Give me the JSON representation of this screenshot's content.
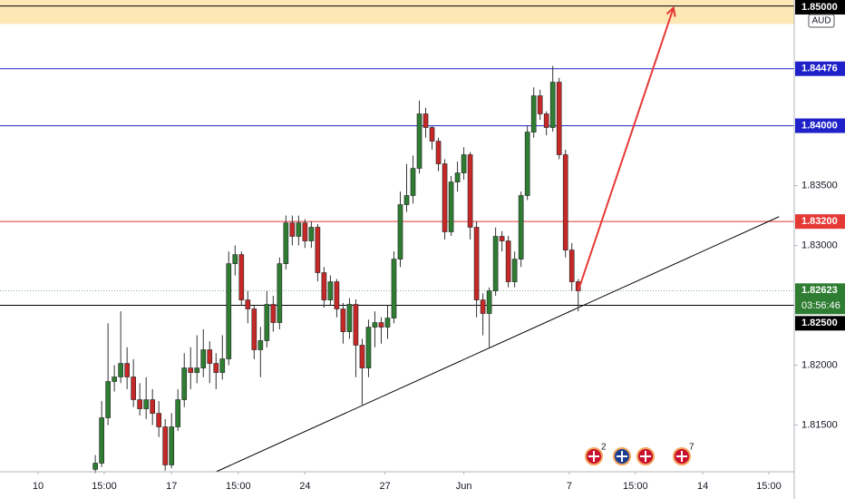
{
  "chart_data": {
    "type": "candlestick",
    "currency": "AUD",
    "countdown": "03:56:46",
    "xlim": [
      -15,
      110
    ],
    "ylim": [
      1.8111,
      1.8505
    ],
    "xticks": [
      {
        "value": -9,
        "label": "10"
      },
      {
        "value": 1.4,
        "label": "15:00"
      },
      {
        "value": 12,
        "label": "17"
      },
      {
        "value": 22.5,
        "label": "15:00"
      },
      {
        "value": 33,
        "label": "24"
      },
      {
        "value": 45.6,
        "label": "27"
      },
      {
        "value": 58,
        "label": "Jun"
      },
      {
        "value": 74.6,
        "label": "7"
      },
      {
        "value": 85,
        "label": "15:00"
      },
      {
        "value": 95.6,
        "label": "14"
      },
      {
        "value": 106,
        "label": "15:00"
      }
    ],
    "yticks": [
      {
        "value": 1.815,
        "label": "1.81500"
      },
      {
        "value": 1.82,
        "label": "1.82000"
      },
      {
        "value": 1.83,
        "label": "1.83000"
      },
      {
        "value": 1.835,
        "label": "1.83500"
      }
    ],
    "up_color": "#2e7d32",
    "down_color": "#c62828",
    "open": [
      1.8113,
      1.81182,
      1.81561,
      1.81864,
      1.81902,
      1.82015,
      1.81902,
      1.81712,
      1.81636,
      1.81712,
      1.81598,
      1.81485,
      1.81167,
      1.81485,
      1.81712,
      1.81977,
      1.81939,
      1.81977,
      1.82129,
      1.82015,
      1.81939,
      1.82053,
      1.82848,
      1.82924,
      1.82545,
      1.8247,
      1.82129,
      1.82205,
      1.82508,
      1.82356,
      1.82848,
      1.83189,
      1.83076,
      1.83189,
      1.83038,
      1.83152,
      1.82773,
      1.82545,
      1.82697,
      1.8247,
      1.8228,
      1.82508,
      1.82167,
      1.81977,
      1.82318,
      1.82356,
      1.82318,
      1.82394,
      1.82886,
      1.83341,
      1.83417,
      1.83644,
      1.84099,
      1.83985,
      1.83871,
      1.83682,
      1.83114,
      1.8353,
      1.83606,
      1.83758,
      1.83152,
      1.82545,
      1.82432,
      1.82621,
      1.83076,
      1.83038,
      1.82697,
      1.82886,
      1.83417,
      1.83947,
      1.8425,
      1.84099,
      1.83985,
      1.84364,
      1.83758,
      1.82962,
      1.82697
    ],
    "high": [
      1.8125,
      1.817,
      1.8235,
      1.82,
      1.8245,
      1.8215,
      1.8205,
      1.8185,
      1.819,
      1.818,
      1.817,
      1.8155,
      1.816,
      1.818,
      1.821,
      1.8215,
      1.8225,
      1.823,
      1.822,
      1.821,
      1.8225,
      1.8295,
      1.83,
      1.8295,
      1.8262,
      1.825,
      1.8232,
      1.8262,
      1.8258,
      1.829,
      1.8325,
      1.8325,
      1.8325,
      1.8322,
      1.832,
      1.8318,
      1.8282,
      1.8275,
      1.8272,
      1.8252,
      1.8256,
      1.8255,
      1.8222,
      1.8238,
      1.8245,
      1.824,
      1.825,
      1.8295,
      1.8345,
      1.8368,
      1.8375,
      1.8421,
      1.8415,
      1.84,
      1.839,
      1.8372,
      1.8358,
      1.837,
      1.8382,
      1.8378,
      1.832,
      1.826,
      1.8265,
      1.8315,
      1.8312,
      1.8308,
      1.8295,
      1.8345,
      1.84,
      1.8432,
      1.843,
      1.8412,
      1.845,
      1.844,
      1.838,
      1.8302,
      1.8272
    ],
    "low": [
      1.811,
      1.8115,
      1.815,
      1.8178,
      1.8185,
      1.818,
      1.8165,
      1.8158,
      1.8155,
      1.815,
      1.814,
      1.8112,
      1.8114,
      1.8145,
      1.8165,
      1.818,
      1.8185,
      1.819,
      1.8185,
      1.818,
      1.8188,
      1.82,
      1.8275,
      1.825,
      1.8235,
      1.8205,
      1.819,
      1.8215,
      1.8228,
      1.823,
      1.828,
      1.83,
      1.83,
      1.8298,
      1.8298,
      1.827,
      1.8248,
      1.825,
      1.824,
      1.8218,
      1.8222,
      1.819,
      1.8167,
      1.819,
      1.8215,
      1.8218,
      1.8222,
      1.8235,
      1.8282,
      1.8328,
      1.8335,
      1.836,
      1.839,
      1.838,
      1.8362,
      1.8305,
      1.8308,
      1.8345,
      1.8355,
      1.8305,
      1.824,
      1.8225,
      1.8215,
      1.8258,
      1.8295,
      1.8265,
      1.8265,
      1.8282,
      1.8338,
      1.839,
      1.8405,
      1.8392,
      1.8395,
      1.8372,
      1.829,
      1.8262,
      1.8245
    ],
    "close": [
      1.81182,
      1.81561,
      1.81864,
      1.81902,
      1.82015,
      1.81902,
      1.81712,
      1.81636,
      1.81712,
      1.81598,
      1.81485,
      1.81167,
      1.81485,
      1.81712,
      1.81977,
      1.81939,
      1.81977,
      1.82129,
      1.82015,
      1.81939,
      1.82053,
      1.82848,
      1.82924,
      1.82545,
      1.8247,
      1.82129,
      1.82205,
      1.82508,
      1.82356,
      1.82848,
      1.83189,
      1.83076,
      1.83189,
      1.83038,
      1.83152,
      1.82773,
      1.82545,
      1.82697,
      1.8247,
      1.8228,
      1.82508,
      1.82167,
      1.81977,
      1.82318,
      1.82356,
      1.82318,
      1.82394,
      1.82886,
      1.83341,
      1.83417,
      1.83644,
      1.84099,
      1.83985,
      1.83871,
      1.83682,
      1.83114,
      1.8353,
      1.83606,
      1.83758,
      1.83152,
      1.82545,
      1.82432,
      1.82621,
      1.83076,
      1.83038,
      1.82697,
      1.82886,
      1.83417,
      1.83947,
      1.8425,
      1.84099,
      1.83985,
      1.84364,
      1.83758,
      1.82962,
      1.82697,
      1.82621
    ],
    "zone": {
      "values": [
        1.8485,
        1.8505
      ],
      "color": "#fde7b5"
    },
    "levels": [
      {
        "value": 1.85,
        "label": "1.85000",
        "color": "#000000"
      },
      {
        "value": 1.84476,
        "label": "1.84476",
        "color": "#1e22c8"
      },
      {
        "value": 1.84,
        "label": "1.84000",
        "color": "#1e22c8"
      },
      {
        "value": 1.832,
        "label": "1.83200",
        "color": "#e53935"
      },
      {
        "value": 1.82623,
        "label": "1.82623",
        "color": "#2e7d32"
      },
      {
        "value": 1.825,
        "label": "1.82500",
        "color": "#000000"
      }
    ],
    "trendline": {
      "x": [
        19,
        107.6
      ],
      "y": [
        1.8111,
        1.8324
      ],
      "color": "#000000"
    },
    "arrow": {
      "x": [
        76,
        91
      ],
      "y": [
        1.82621,
        1.84985
      ],
      "color": "#e53935"
    },
    "events": [
      {
        "label": "2"
      },
      {
        "label": ""
      },
      {
        "label": ""
      },
      {
        "label": "7"
      }
    ]
  }
}
